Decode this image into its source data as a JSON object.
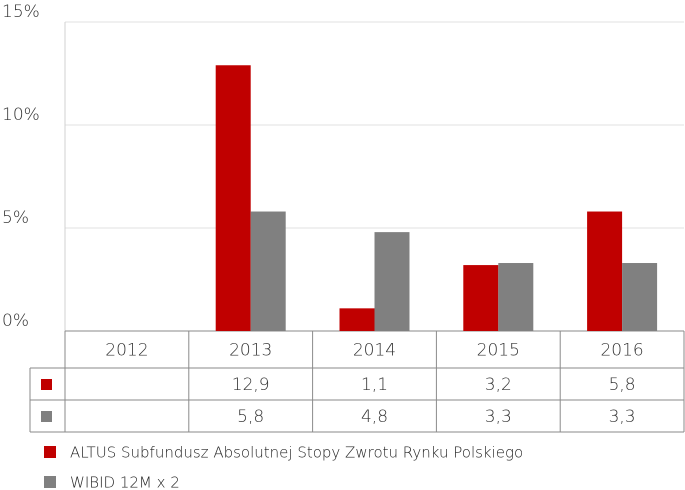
{
  "chart_data": {
    "type": "bar",
    "categories": [
      "2012",
      "2013",
      "2014",
      "2015",
      "2016"
    ],
    "series": [
      {
        "name": "ALTUS Subfundusz Absolutnej Stopy Zwrotu Rynku Polskiego",
        "color": "#c00000",
        "values": [
          null,
          12.9,
          1.1,
          3.2,
          5.8
        ],
        "value_labels": [
          null,
          "12,9",
          "1,1",
          "3,2",
          "5,8"
        ]
      },
      {
        "name": "WIBID 12M x 2",
        "color": "#808080",
        "values": [
          null,
          5.8,
          4.8,
          3.3,
          3.3
        ],
        "value_labels": [
          null,
          "5,8",
          "4,8",
          "3,3",
          "3,3"
        ]
      }
    ],
    "ylim": [
      0,
      15
    ],
    "yticks": [
      {
        "value": 0,
        "label": "0%"
      },
      {
        "value": 5,
        "label": "5%"
      },
      {
        "value": 10,
        "label": "10%"
      },
      {
        "value": 15,
        "label": "15%"
      }
    ],
    "grid": true
  }
}
